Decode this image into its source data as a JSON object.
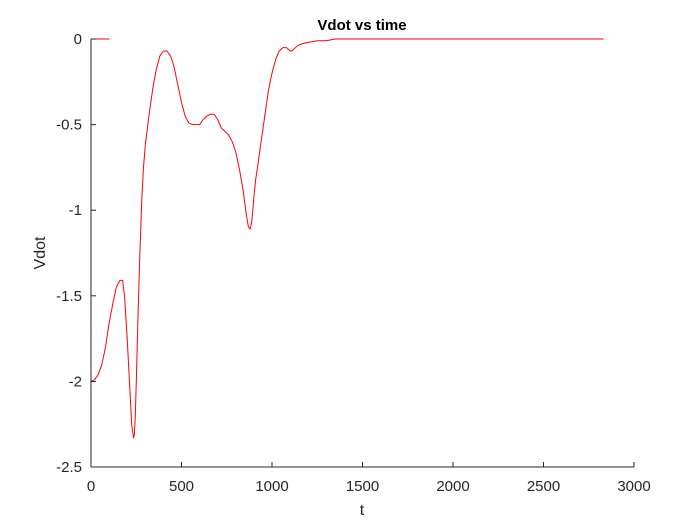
{
  "chart_data": {
    "type": "line",
    "title": "Vdot vs time",
    "xlabel": "t",
    "ylabel": "Vdot",
    "xlim": [
      0,
      3000
    ],
    "ylim": [
      -2.5,
      0
    ],
    "xticks": [
      0,
      500,
      1000,
      1500,
      2000,
      2500,
      3000
    ],
    "xtick_labels": [
      "0",
      "500",
      "1000",
      "1500",
      "2000",
      "2500",
      "3000"
    ],
    "yticks": [
      -2.5,
      -2,
      -1.5,
      -1,
      -0.5,
      0
    ],
    "ytick_labels": [
      "-2.5",
      "-2",
      "-1.5",
      "-1",
      "-0.5",
      "0"
    ],
    "grid": false,
    "legend": "none",
    "series": [
      {
        "color": "#ff0000",
        "x": [
          0,
          20,
          40,
          60,
          80,
          100,
          120,
          140,
          160,
          175,
          185,
          200,
          215,
          225,
          235,
          240,
          245,
          250,
          260,
          270,
          280,
          290,
          300,
          320,
          340,
          360,
          380,
          400,
          420,
          440,
          450,
          460,
          480,
          500,
          520,
          540,
          560,
          580,
          600,
          620,
          640,
          660,
          680,
          700,
          720,
          740,
          760,
          780,
          800,
          820,
          840,
          860,
          870,
          880,
          890,
          900,
          910,
          920,
          940,
          960,
          980,
          1000,
          1020,
          1040,
          1060,
          1080,
          1090,
          1100,
          1110,
          1120,
          1140,
          1160,
          1200,
          1250,
          1300,
          1350,
          1400,
          1500,
          1600,
          1800,
          2000,
          2200,
          2400,
          2600,
          2830
        ],
        "y": [
          -2.0,
          -1.99,
          -1.96,
          -1.9,
          -1.8,
          -1.66,
          -1.55,
          -1.45,
          -1.41,
          -1.41,
          -1.5,
          -1.75,
          -2.05,
          -2.25,
          -2.33,
          -2.31,
          -2.2,
          -2.0,
          -1.6,
          -1.25,
          -0.95,
          -0.75,
          -0.62,
          -0.45,
          -0.3,
          -0.18,
          -0.1,
          -0.07,
          -0.07,
          -0.1,
          -0.13,
          -0.17,
          -0.27,
          -0.37,
          -0.45,
          -0.49,
          -0.5,
          -0.5,
          -0.5,
          -0.47,
          -0.45,
          -0.44,
          -0.44,
          -0.47,
          -0.52,
          -0.54,
          -0.56,
          -0.6,
          -0.66,
          -0.76,
          -0.88,
          -1.04,
          -1.1,
          -1.11,
          -1.05,
          -0.92,
          -0.82,
          -0.75,
          -0.6,
          -0.45,
          -0.3,
          -0.2,
          -0.12,
          -0.07,
          -0.05,
          -0.05,
          -0.06,
          -0.07,
          -0.07,
          -0.06,
          -0.04,
          -0.03,
          -0.02,
          -0.01,
          -0.01,
          0,
          0,
          0,
          0,
          0,
          0,
          0,
          0,
          0,
          0
        ]
      },
      {
        "color": "#ff0000",
        "x": [
          0,
          100
        ],
        "y": [
          0,
          0
        ]
      }
    ]
  }
}
